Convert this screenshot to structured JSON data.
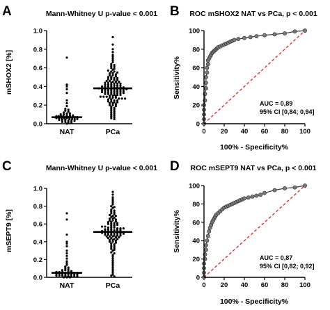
{
  "chart_data": [
    {
      "panel": "A",
      "type": "scatter",
      "title": "Mann-Whitney U p-value < 0.001",
      "ylabel": "mSHOX2 [%]",
      "xlabel": "",
      "categories": [
        "NAT",
        "PCa"
      ],
      "ylim": [
        0,
        1.0
      ],
      "yticks": [
        0.0,
        0.2,
        0.4,
        0.6,
        0.8,
        1.0
      ],
      "yticklabels": [
        "0.0",
        "0.2",
        "0.4",
        "0.6",
        "0.8",
        "1.0"
      ],
      "medians": [
        0.07,
        0.38
      ],
      "grid": false,
      "point_color": "#000000",
      "series": [
        {
          "category": "NAT",
          "values": [
            0.71,
            0.42,
            0.4,
            0.37,
            0.33,
            0.25,
            0.22,
            0.19,
            0.16,
            0.15,
            0.14,
            0.13,
            0.12,
            0.11,
            0.11,
            0.1,
            0.1,
            0.09,
            0.09,
            0.09,
            0.08,
            0.08,
            0.08,
            0.08,
            0.07,
            0.07,
            0.07,
            0.07,
            0.07,
            0.07,
            0.06,
            0.06,
            0.06,
            0.06,
            0.06,
            0.05,
            0.05,
            0.05,
            0.05,
            0.04,
            0.04,
            0.04,
            0.03,
            0.03,
            0.03,
            0.02,
            0.02,
            0.01,
            0.01,
            0.0
          ]
        },
        {
          "category": "PCa",
          "values": [
            0.93,
            0.85,
            0.8,
            0.77,
            0.74,
            0.72,
            0.7,
            0.68,
            0.66,
            0.64,
            0.63,
            0.62,
            0.61,
            0.6,
            0.59,
            0.58,
            0.57,
            0.56,
            0.56,
            0.55,
            0.54,
            0.54,
            0.53,
            0.52,
            0.52,
            0.51,
            0.5,
            0.5,
            0.49,
            0.49,
            0.48,
            0.48,
            0.47,
            0.47,
            0.46,
            0.46,
            0.45,
            0.45,
            0.45,
            0.44,
            0.44,
            0.44,
            0.43,
            0.43,
            0.43,
            0.42,
            0.42,
            0.42,
            0.41,
            0.41,
            0.41,
            0.4,
            0.4,
            0.4,
            0.4,
            0.39,
            0.39,
            0.39,
            0.39,
            0.38,
            0.38,
            0.38,
            0.38,
            0.38,
            0.37,
            0.37,
            0.37,
            0.37,
            0.37,
            0.36,
            0.36,
            0.36,
            0.36,
            0.35,
            0.35,
            0.35,
            0.35,
            0.34,
            0.34,
            0.34,
            0.34,
            0.33,
            0.33,
            0.33,
            0.33,
            0.32,
            0.32,
            0.32,
            0.31,
            0.31,
            0.31,
            0.3,
            0.3,
            0.3,
            0.29,
            0.29,
            0.29,
            0.28,
            0.28,
            0.28,
            0.27,
            0.27,
            0.27,
            0.26,
            0.26,
            0.25,
            0.25,
            0.24,
            0.24,
            0.23,
            0.23,
            0.22,
            0.22,
            0.21,
            0.2,
            0.2,
            0.19,
            0.18,
            0.17,
            0.16,
            0.15,
            0.14,
            0.13,
            0.12,
            0.11,
            0.1,
            0.09,
            0.08,
            0.07,
            0.06,
            0.05
          ]
        }
      ]
    },
    {
      "panel": "B",
      "type": "line",
      "title": "ROC mSHOX2 NAT vs PCa, p < 0.001",
      "xlabel": "100% - Specificity%",
      "ylabel": "Sensitivity%",
      "xlim": [
        0,
        100
      ],
      "ylim": [
        0,
        100
      ],
      "xticks": [
        0,
        20,
        40,
        60,
        80,
        100
      ],
      "yticks": [
        0,
        20,
        40,
        60,
        80,
        100
      ],
      "ticklabels": [
        "0",
        "20",
        "40",
        "60",
        "80",
        "100"
      ],
      "annotations": [
        "AUC = 0,89",
        "95% CI [0,84; 0,94]"
      ],
      "reference_line": {
        "x": [
          0,
          100
        ],
        "y": [
          0,
          100
        ],
        "color": "#e03030",
        "style": "dashed"
      },
      "grid": false,
      "x": [
        0,
        0,
        0,
        0,
        0,
        1,
        1,
        2,
        2,
        2,
        3,
        3,
        4,
        4,
        5,
        6,
        7,
        8,
        9,
        10,
        11,
        12,
        13,
        14,
        16,
        18,
        20,
        22,
        24,
        26,
        28,
        30,
        34,
        40,
        46,
        52,
        60,
        70,
        80,
        90,
        100
      ],
      "y": [
        0,
        5,
        10,
        15,
        20,
        25,
        32,
        38,
        44,
        50,
        55,
        60,
        64,
        68,
        70,
        72,
        74,
        76,
        77,
        78,
        79,
        80,
        81,
        82,
        83,
        84,
        85,
        86,
        87,
        88,
        89,
        90,
        91,
        92,
        93,
        94,
        95,
        96,
        97,
        99,
        100
      ]
    },
    {
      "panel": "C",
      "type": "scatter",
      "title": "Mann-Whitney U p-value < 0.001",
      "ylabel": "mSEPT9 [%]",
      "xlabel": "",
      "categories": [
        "NAT",
        "PCa"
      ],
      "ylim": [
        0,
        1.0
      ],
      "yticks": [
        0.0,
        0.2,
        0.4,
        0.6,
        0.8,
        1.0
      ],
      "yticklabels": [
        "0.0",
        "0.2",
        "0.4",
        "0.6",
        "0.8",
        "1.0"
      ],
      "medians": [
        0.05,
        0.51
      ],
      "grid": false,
      "point_color": "#000000",
      "series": [
        {
          "category": "NAT",
          "values": [
            0.72,
            0.65,
            0.48,
            0.4,
            0.38,
            0.35,
            0.3,
            0.27,
            0.24,
            0.21,
            0.18,
            0.16,
            0.14,
            0.12,
            0.11,
            0.1,
            0.09,
            0.08,
            0.08,
            0.07,
            0.07,
            0.06,
            0.06,
            0.06,
            0.05,
            0.05,
            0.05,
            0.05,
            0.05,
            0.04,
            0.04,
            0.04,
            0.04,
            0.03,
            0.03,
            0.03,
            0.03,
            0.02,
            0.02,
            0.02,
            0.02,
            0.01,
            0.01,
            0.01,
            0.01,
            0.0,
            0.0,
            0.0
          ]
        },
        {
          "category": "PCa",
          "values": [
            0.96,
            0.93,
            0.9,
            0.88,
            0.86,
            0.84,
            0.82,
            0.8,
            0.79,
            0.78,
            0.76,
            0.75,
            0.74,
            0.73,
            0.72,
            0.71,
            0.7,
            0.69,
            0.69,
            0.68,
            0.67,
            0.66,
            0.66,
            0.65,
            0.64,
            0.64,
            0.63,
            0.62,
            0.62,
            0.61,
            0.61,
            0.6,
            0.6,
            0.59,
            0.59,
            0.58,
            0.58,
            0.57,
            0.57,
            0.56,
            0.56,
            0.56,
            0.55,
            0.55,
            0.55,
            0.54,
            0.54,
            0.54,
            0.53,
            0.53,
            0.53,
            0.52,
            0.52,
            0.52,
            0.52,
            0.51,
            0.51,
            0.51,
            0.51,
            0.5,
            0.5,
            0.5,
            0.5,
            0.49,
            0.49,
            0.49,
            0.49,
            0.48,
            0.48,
            0.48,
            0.47,
            0.47,
            0.47,
            0.46,
            0.46,
            0.46,
            0.45,
            0.45,
            0.44,
            0.44,
            0.43,
            0.43,
            0.42,
            0.42,
            0.41,
            0.4,
            0.4,
            0.39,
            0.38,
            0.37,
            0.36,
            0.35,
            0.34,
            0.33,
            0.32,
            0.31,
            0.3,
            0.28,
            0.27,
            0.25,
            0.23,
            0.21,
            0.19,
            0.17,
            0.15,
            0.13,
            0.11,
            0.09,
            0.07,
            0.05,
            0.03,
            0.02,
            0.01
          ]
        }
      ]
    },
    {
      "panel": "D",
      "type": "line",
      "title": "ROC mSEPT9 NAT vs PCa, p < 0.001",
      "xlabel": "100% - Specificity%",
      "ylabel": "Sensitivity%",
      "xlim": [
        0,
        100
      ],
      "ylim": [
        0,
        100
      ],
      "xticks": [
        0,
        20,
        40,
        60,
        80,
        100
      ],
      "yticks": [
        0,
        20,
        40,
        60,
        80,
        100
      ],
      "ticklabels": [
        "0",
        "20",
        "40",
        "60",
        "80",
        "100"
      ],
      "annotations": [
        "AUC = 0,87",
        "95% CI [0,82; 0,92]"
      ],
      "reference_line": {
        "x": [
          0,
          100
        ],
        "y": [
          0,
          100
        ],
        "color": "#e03030",
        "style": "dashed"
      },
      "grid": false,
      "x": [
        0,
        0,
        0,
        0,
        1,
        1,
        2,
        2,
        3,
        4,
        5,
        6,
        7,
        8,
        9,
        10,
        11,
        12,
        14,
        16,
        18,
        20,
        22,
        24,
        26,
        28,
        30,
        32,
        34,
        36,
        38,
        40,
        44,
        48,
        52,
        56,
        60,
        70,
        80,
        90,
        100
      ],
      "y": [
        0,
        5,
        10,
        15,
        20,
        25,
        30,
        35,
        40,
        45,
        50,
        54,
        57,
        60,
        62,
        64,
        66,
        68,
        70,
        72,
        74,
        76,
        77,
        78,
        79,
        80,
        81,
        82,
        83,
        84,
        85,
        86,
        87,
        88,
        89,
        90,
        92,
        95,
        97,
        98,
        100
      ]
    }
  ]
}
